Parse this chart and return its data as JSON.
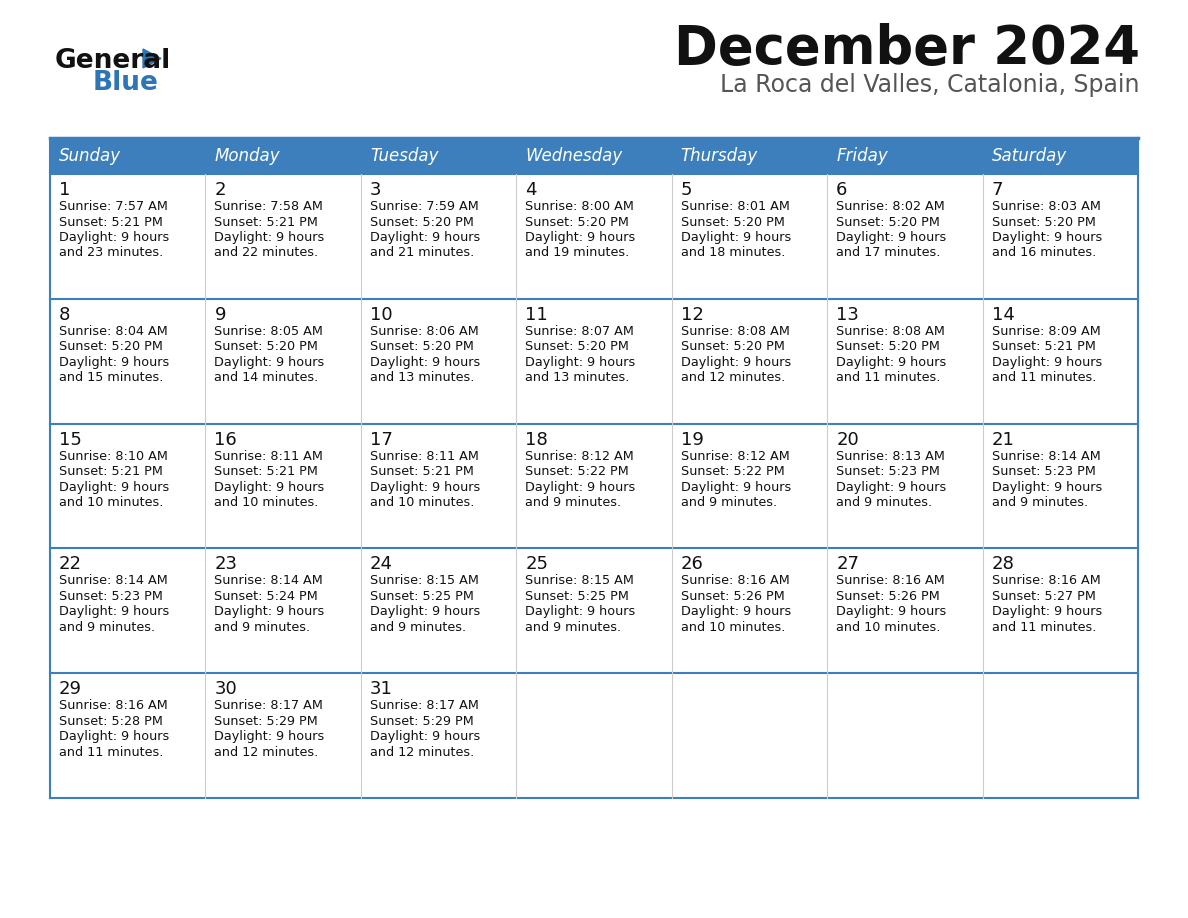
{
  "title": "December 2024",
  "subtitle": "La Roca del Valles, Catalonia, Spain",
  "header_color": "#3D7FBD",
  "header_text_color": "#FFFFFF",
  "background_color": "#FFFFFF",
  "cell_bg_color": "#FFFFFF",
  "alt_cell_bg_color": "#F2F2F2",
  "days_of_week": [
    "Sunday",
    "Monday",
    "Tuesday",
    "Wednesday",
    "Thursday",
    "Friday",
    "Saturday"
  ],
  "weeks": [
    [
      {
        "day": 1,
        "sunrise": "7:57 AM",
        "sunset": "5:21 PM",
        "daylight_h": "9 hours",
        "daylight_m": "and 23 minutes."
      },
      {
        "day": 2,
        "sunrise": "7:58 AM",
        "sunset": "5:21 PM",
        "daylight_h": "9 hours",
        "daylight_m": "and 22 minutes."
      },
      {
        "day": 3,
        "sunrise": "7:59 AM",
        "sunset": "5:20 PM",
        "daylight_h": "9 hours",
        "daylight_m": "and 21 minutes."
      },
      {
        "day": 4,
        "sunrise": "8:00 AM",
        "sunset": "5:20 PM",
        "daylight_h": "9 hours",
        "daylight_m": "and 19 minutes."
      },
      {
        "day": 5,
        "sunrise": "8:01 AM",
        "sunset": "5:20 PM",
        "daylight_h": "9 hours",
        "daylight_m": "and 18 minutes."
      },
      {
        "day": 6,
        "sunrise": "8:02 AM",
        "sunset": "5:20 PM",
        "daylight_h": "9 hours",
        "daylight_m": "and 17 minutes."
      },
      {
        "day": 7,
        "sunrise": "8:03 AM",
        "sunset": "5:20 PM",
        "daylight_h": "9 hours",
        "daylight_m": "and 16 minutes."
      }
    ],
    [
      {
        "day": 8,
        "sunrise": "8:04 AM",
        "sunset": "5:20 PM",
        "daylight_h": "9 hours",
        "daylight_m": "and 15 minutes."
      },
      {
        "day": 9,
        "sunrise": "8:05 AM",
        "sunset": "5:20 PM",
        "daylight_h": "9 hours",
        "daylight_m": "and 14 minutes."
      },
      {
        "day": 10,
        "sunrise": "8:06 AM",
        "sunset": "5:20 PM",
        "daylight_h": "9 hours",
        "daylight_m": "and 13 minutes."
      },
      {
        "day": 11,
        "sunrise": "8:07 AM",
        "sunset": "5:20 PM",
        "daylight_h": "9 hours",
        "daylight_m": "and 13 minutes."
      },
      {
        "day": 12,
        "sunrise": "8:08 AM",
        "sunset": "5:20 PM",
        "daylight_h": "9 hours",
        "daylight_m": "and 12 minutes."
      },
      {
        "day": 13,
        "sunrise": "8:08 AM",
        "sunset": "5:20 PM",
        "daylight_h": "9 hours",
        "daylight_m": "and 11 minutes."
      },
      {
        "day": 14,
        "sunrise": "8:09 AM",
        "sunset": "5:21 PM",
        "daylight_h": "9 hours",
        "daylight_m": "and 11 minutes."
      }
    ],
    [
      {
        "day": 15,
        "sunrise": "8:10 AM",
        "sunset": "5:21 PM",
        "daylight_h": "9 hours",
        "daylight_m": "and 10 minutes."
      },
      {
        "day": 16,
        "sunrise": "8:11 AM",
        "sunset": "5:21 PM",
        "daylight_h": "9 hours",
        "daylight_m": "and 10 minutes."
      },
      {
        "day": 17,
        "sunrise": "8:11 AM",
        "sunset": "5:21 PM",
        "daylight_h": "9 hours",
        "daylight_m": "and 10 minutes."
      },
      {
        "day": 18,
        "sunrise": "8:12 AM",
        "sunset": "5:22 PM",
        "daylight_h": "9 hours",
        "daylight_m": "and 9 minutes."
      },
      {
        "day": 19,
        "sunrise": "8:12 AM",
        "sunset": "5:22 PM",
        "daylight_h": "9 hours",
        "daylight_m": "and 9 minutes."
      },
      {
        "day": 20,
        "sunrise": "8:13 AM",
        "sunset": "5:23 PM",
        "daylight_h": "9 hours",
        "daylight_m": "and 9 minutes."
      },
      {
        "day": 21,
        "sunrise": "8:14 AM",
        "sunset": "5:23 PM",
        "daylight_h": "9 hours",
        "daylight_m": "and 9 minutes."
      }
    ],
    [
      {
        "day": 22,
        "sunrise": "8:14 AM",
        "sunset": "5:23 PM",
        "daylight_h": "9 hours",
        "daylight_m": "and 9 minutes."
      },
      {
        "day": 23,
        "sunrise": "8:14 AM",
        "sunset": "5:24 PM",
        "daylight_h": "9 hours",
        "daylight_m": "and 9 minutes."
      },
      {
        "day": 24,
        "sunrise": "8:15 AM",
        "sunset": "5:25 PM",
        "daylight_h": "9 hours",
        "daylight_m": "and 9 minutes."
      },
      {
        "day": 25,
        "sunrise": "8:15 AM",
        "sunset": "5:25 PM",
        "daylight_h": "9 hours",
        "daylight_m": "and 9 minutes."
      },
      {
        "day": 26,
        "sunrise": "8:16 AM",
        "sunset": "5:26 PM",
        "daylight_h": "9 hours",
        "daylight_m": "and 10 minutes."
      },
      {
        "day": 27,
        "sunrise": "8:16 AM",
        "sunset": "5:26 PM",
        "daylight_h": "9 hours",
        "daylight_m": "and 10 minutes."
      },
      {
        "day": 28,
        "sunrise": "8:16 AM",
        "sunset": "5:27 PM",
        "daylight_h": "9 hours",
        "daylight_m": "and 11 minutes."
      }
    ],
    [
      {
        "day": 29,
        "sunrise": "8:16 AM",
        "sunset": "5:28 PM",
        "daylight_h": "9 hours",
        "daylight_m": "and 11 minutes."
      },
      {
        "day": 30,
        "sunrise": "8:17 AM",
        "sunset": "5:29 PM",
        "daylight_h": "9 hours",
        "daylight_m": "and 12 minutes."
      },
      {
        "day": 31,
        "sunrise": "8:17 AM",
        "sunset": "5:29 PM",
        "daylight_h": "9 hours",
        "daylight_m": "and 12 minutes."
      },
      null,
      null,
      null,
      null
    ]
  ],
  "logo_general_color": "#111111",
  "logo_blue_color": "#2E75B6",
  "logo_triangle_color": "#2E75B6",
  "title_fontsize": 38,
  "subtitle_fontsize": 17,
  "day_header_fontsize": 12,
  "day_num_fontsize": 13,
  "cell_text_fontsize": 9.2,
  "row_separator_color": "#3D7FBD",
  "col_separator_color": "#CCCCCC"
}
